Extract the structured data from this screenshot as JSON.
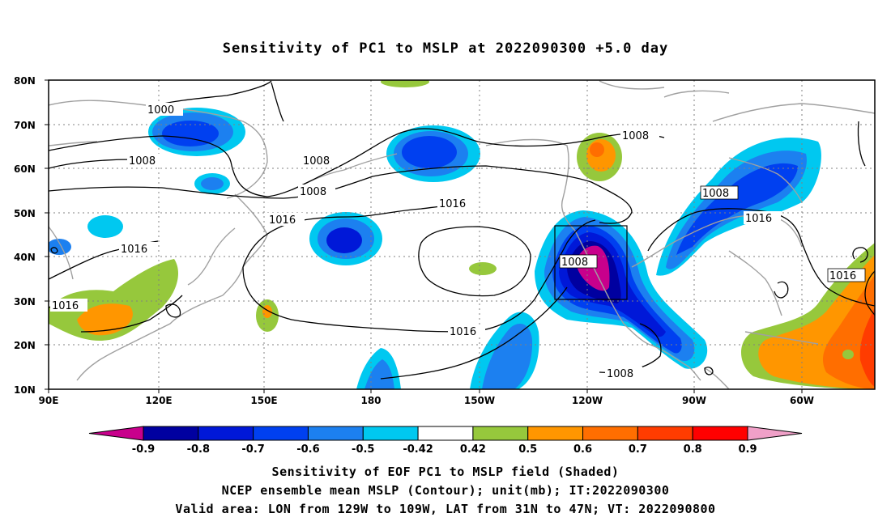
{
  "title": "Sensitivity of PC1 to MSLP at 2022090300 +5.0 day",
  "latitude_labels": [
    "80N",
    "70N",
    "60N",
    "50N",
    "40N",
    "30N",
    "20N",
    "10N"
  ],
  "longitude_labels": [
    "90E",
    "120E",
    "150E",
    "180",
    "150W",
    "120W",
    "90W",
    "60W"
  ],
  "contour_labels": [
    "1000",
    "1008",
    "1008",
    "1008",
    "1008",
    "1008",
    "1008",
    "1008",
    "1016",
    "1016",
    "1016",
    "1016",
    "1016",
    "1016"
  ],
  "colorbar": {
    "tick_labels": [
      "-0.9",
      "-0.8",
      "-0.7",
      "-0.6",
      "-0.5",
      "-0.42",
      "0.42",
      "0.5",
      "0.6",
      "0.7",
      "0.8",
      "0.9"
    ],
    "colors": [
      "#c8008c",
      "#0000a0",
      "#0018d8",
      "#0040f0",
      "#1c80f0",
      "#00c8f0",
      "#ffffff",
      "#96c83c",
      "#ff9600",
      "#ff6e00",
      "#ff3c00",
      "#ff0000",
      "#f0a0c8"
    ]
  },
  "captions": [
    "Sensitivity of EOF PC1 to MSLP field (Shaded)",
    "NCEP ensemble mean MSLP (Contour); unit(mb); IT:2022090300",
    "Valid area: LON from 129W to 109W, LAT from 31N to 47N; VT: 2022090800"
  ],
  "valid_area_box": {
    "lon": [
      -129,
      -109
    ],
    "lat": [
      31,
      47
    ]
  }
}
